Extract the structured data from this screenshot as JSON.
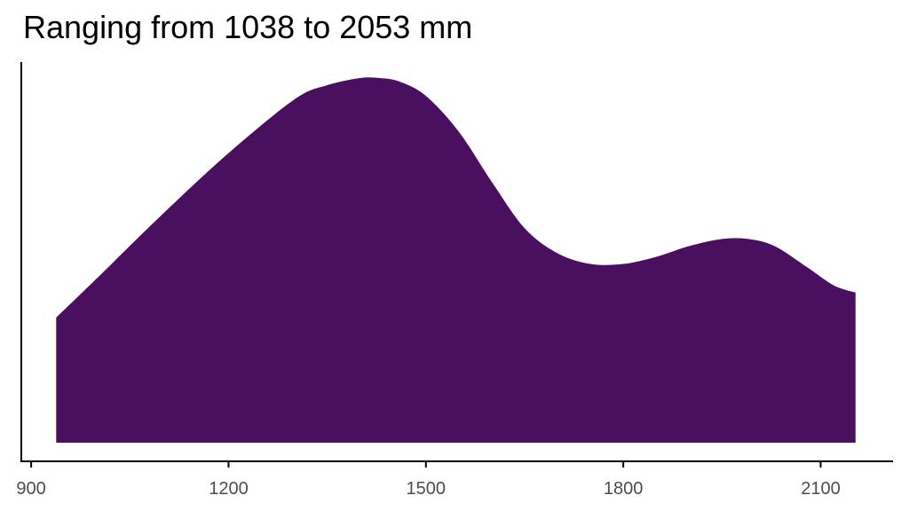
{
  "chart_data": {
    "type": "area",
    "title": "Ranging from 1038 to 2053 mm",
    "xlabel": "",
    "ylabel": "",
    "xlim": [
      885,
      2210
    ],
    "x_ticks": [
      900,
      1200,
      1500,
      1800,
      2100
    ],
    "x_tick_labels": [
      "900",
      "1200",
      "1500",
      "1800",
      "2100"
    ],
    "ylim": [
      0,
      1.0
    ],
    "grid": false,
    "legend": "none",
    "fill_color": "#48105E",
    "series": [
      {
        "x": [
          938,
          1000,
          1100,
          1200,
          1300,
          1350,
          1400,
          1430,
          1460,
          1500,
          1550,
          1600,
          1650,
          1700,
          1750,
          1800,
          1850,
          1900,
          1950,
          1990,
          2030,
          2080,
          2120,
          2153
        ],
        "y": [
          0.35,
          0.46,
          0.64,
          0.81,
          0.96,
          1.0,
          1.02,
          1.02,
          1.01,
          0.97,
          0.87,
          0.73,
          0.6,
          0.53,
          0.5,
          0.5,
          0.52,
          0.55,
          0.57,
          0.57,
          0.55,
          0.49,
          0.44,
          0.42
        ]
      }
    ]
  }
}
